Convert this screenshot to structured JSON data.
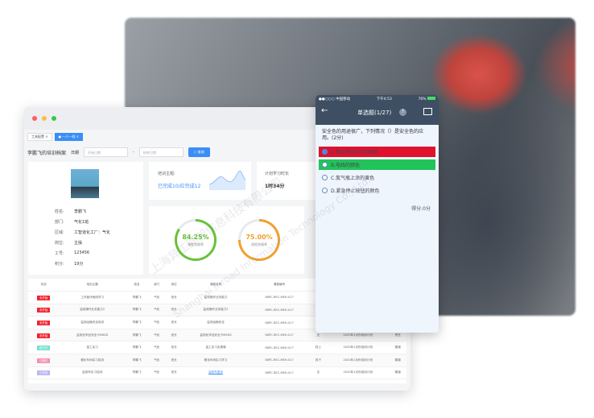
{
  "browser": {
    "tabs": [
      "工具配置",
      "一人一档"
    ],
    "page_title": "李鹏飞的培训档案",
    "date_label": "日期",
    "start_placeholder": "开始日期",
    "end_placeholder": "结束日期",
    "date_sep": "-",
    "search_label": "查询",
    "profile": {
      "fields": [
        {
          "k": "姓名:",
          "v": "李鹏飞"
        },
        {
          "k": "部门:",
          "v": "气化1班"
        },
        {
          "k": "区域:",
          "v": "工智道化工厂：气化"
        },
        {
          "k": "岗位:",
          "v": "主操"
        },
        {
          "k": "工号:",
          "v": "123456"
        },
        {
          "k": "积分:",
          "v": "19分"
        }
      ]
    },
    "topic": {
      "label": "培训主题:",
      "value": "已完成10/应完成12"
    },
    "plan": {
      "label": "计划学习时长",
      "value": "1时34分"
    },
    "rings": [
      {
        "value": "84.25%",
        "label": "课程完成率",
        "percent": 84.25,
        "color": "#67c23a"
      },
      {
        "value": "75.00%",
        "label": "测验合格率",
        "percent": 75,
        "color": "#f0a030"
      }
    ],
    "table": {
      "headers": [
        "状态",
        "培训主题",
        "姓名",
        "部门",
        "岗位",
        "课程名称",
        "课程编号",
        "形式",
        "培训计划",
        "负责"
      ],
      "rows": [
        {
          "status": "未开始",
          "color": "#f5222d",
          "cells": [
            "工作板块使用学习",
            "李鹏飞",
            "气化",
            "班长",
            "监测操作业务能力",
            "SBPC-REC-MEH-017",
            "",
            "",
            ""
          ]
        },
        {
          "status": "未开始",
          "color": "#f5222d",
          "cells": [
            "监测操作业务能力2",
            "李鹏飞",
            "气化",
            "班长",
            "监测操作业务能力2",
            "SBPC-REC-MEH-017",
            "",
            "",
            ""
          ]
        },
        {
          "status": "未开始",
          "color": "#f5222d",
          "cells": [
            "监测运输安全培训",
            "李鹏飞",
            "气化",
            "班长",
            "监测运输安全",
            "SBPC-REC-MEH-017",
            "",
            "",
            ""
          ]
        },
        {
          "status": "未开始",
          "color": "#f5222d",
          "cells": [
            "监测化学品安全卡MSDS",
            "李鹏飞",
            "气化",
            "班长",
            "监测化学品安全卡MSDS",
            "SBPC-REC-MEH-017",
            "无",
            "2020年1月份培训计划",
            "责任"
          ]
        },
        {
          "status": "进行中",
          "color": "#7ee0cf",
          "cells": [
            "金工实习",
            "李鹏飞",
            "气化",
            "班长",
            "金工实习实操课",
            "SBPC-REC-MEH-017",
            "线上",
            "2020年1月份培训计划",
            "霸道"
          ]
        },
        {
          "status": "已报名",
          "color": "#f58fb4",
          "cells": [
            "氨化车间实习培训",
            "李鹏飞",
            "气化",
            "班长",
            "氨化车间实习学习",
            "SBPC-REC-MEH-017",
            "线下",
            "2020年1月份培训计划",
            "霸道"
          ]
        },
        {
          "status": "已完成",
          "color": "#b9b6f5",
          "cells": [
            "监测车实习培训",
            "李鹏飞",
            "气化",
            "班长",
            "监测车复训",
            "SBPC-REC-MEH-017",
            "无",
            "2020年1月份培训计划",
            "霸道"
          ]
        }
      ]
    }
  },
  "phone": {
    "status": {
      "carrier": "●●○○○ 中国移动",
      "time": "下午4:53",
      "battery": "76%"
    },
    "title": "单选题(1/27)",
    "question": "安全色的用途很广，下列情况（）是安全色的应用。(2分)",
    "options": [
      {
        "label": "A.警告等色的不同颜色",
        "state": "wrong",
        "color": "#e0112e"
      },
      {
        "label": "B.电线的颜色",
        "state": "correct",
        "color": "#22c35a"
      },
      {
        "label": "C.氮气瓶上涂的黄色"
      },
      {
        "label": "D.紧急停止按钮的颜色"
      }
    ],
    "score": "得分:0分"
  },
  "watermark": [
    "上海异工同智信息科技有限公司",
    "Shanghai Inroad Information Technology Co., Ltd."
  ]
}
